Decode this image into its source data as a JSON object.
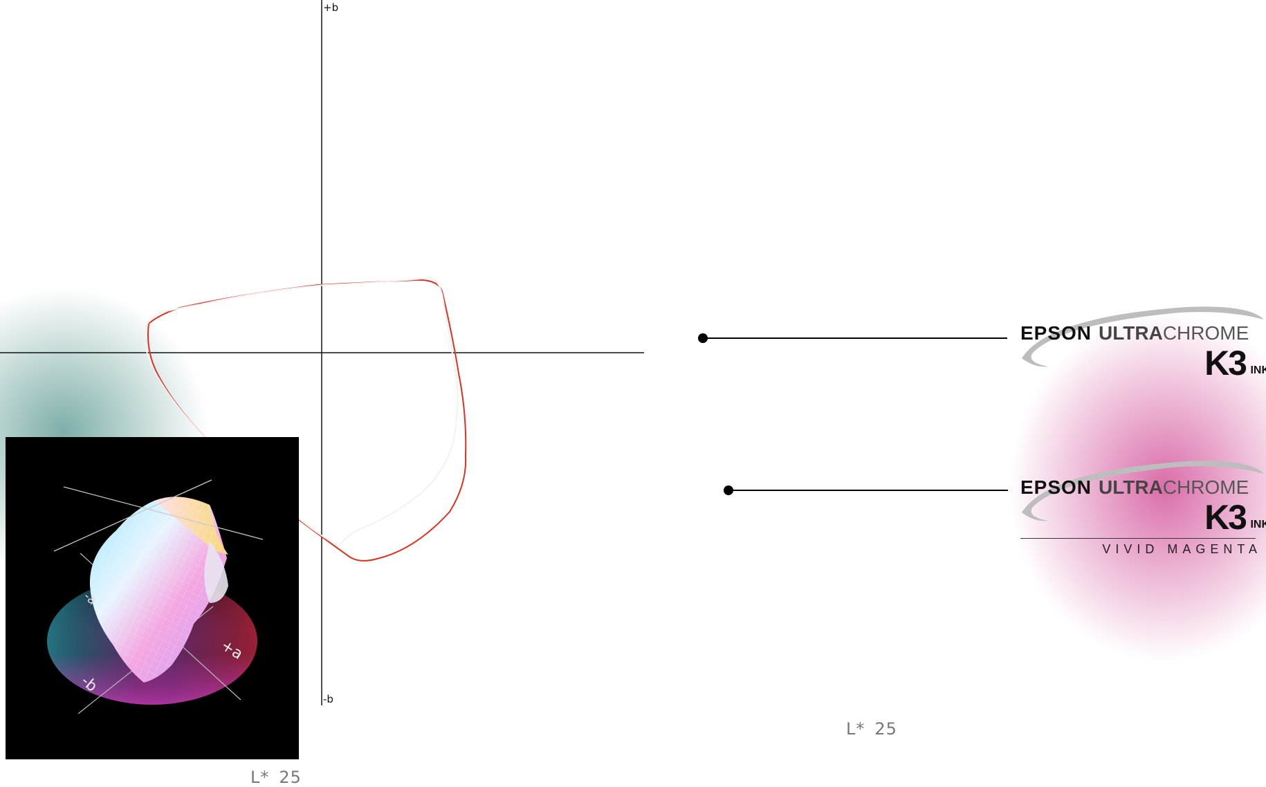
{
  "plane": {
    "axis_top_label": "+b",
    "axis_bottom_label": "-b",
    "lightness_label": "L*",
    "lightness_value": "25"
  },
  "inset": {
    "axis_labels": [
      "-a",
      "+a",
      "-b"
    ],
    "lightness_label": "L*",
    "lightness_value": "25"
  },
  "legend": [
    {
      "brand": "EPSON",
      "line_word_bold": "ULTRA",
      "line_word_light": "CHROME",
      "model": "K3",
      "suffix": "INK",
      "tagline": "",
      "gamut_color": "#ffffff"
    },
    {
      "brand": "EPSON",
      "line_word_bold": "ULTRA",
      "line_word_light": "CHROME",
      "model": "K3",
      "suffix": "INK",
      "tagline": "VIVID MAGENTA",
      "gamut_color": "#e0301e"
    }
  ],
  "colors": {
    "white_gamut": "#ffffff",
    "red_gamut": "#e0301e",
    "leader": "#000000"
  }
}
